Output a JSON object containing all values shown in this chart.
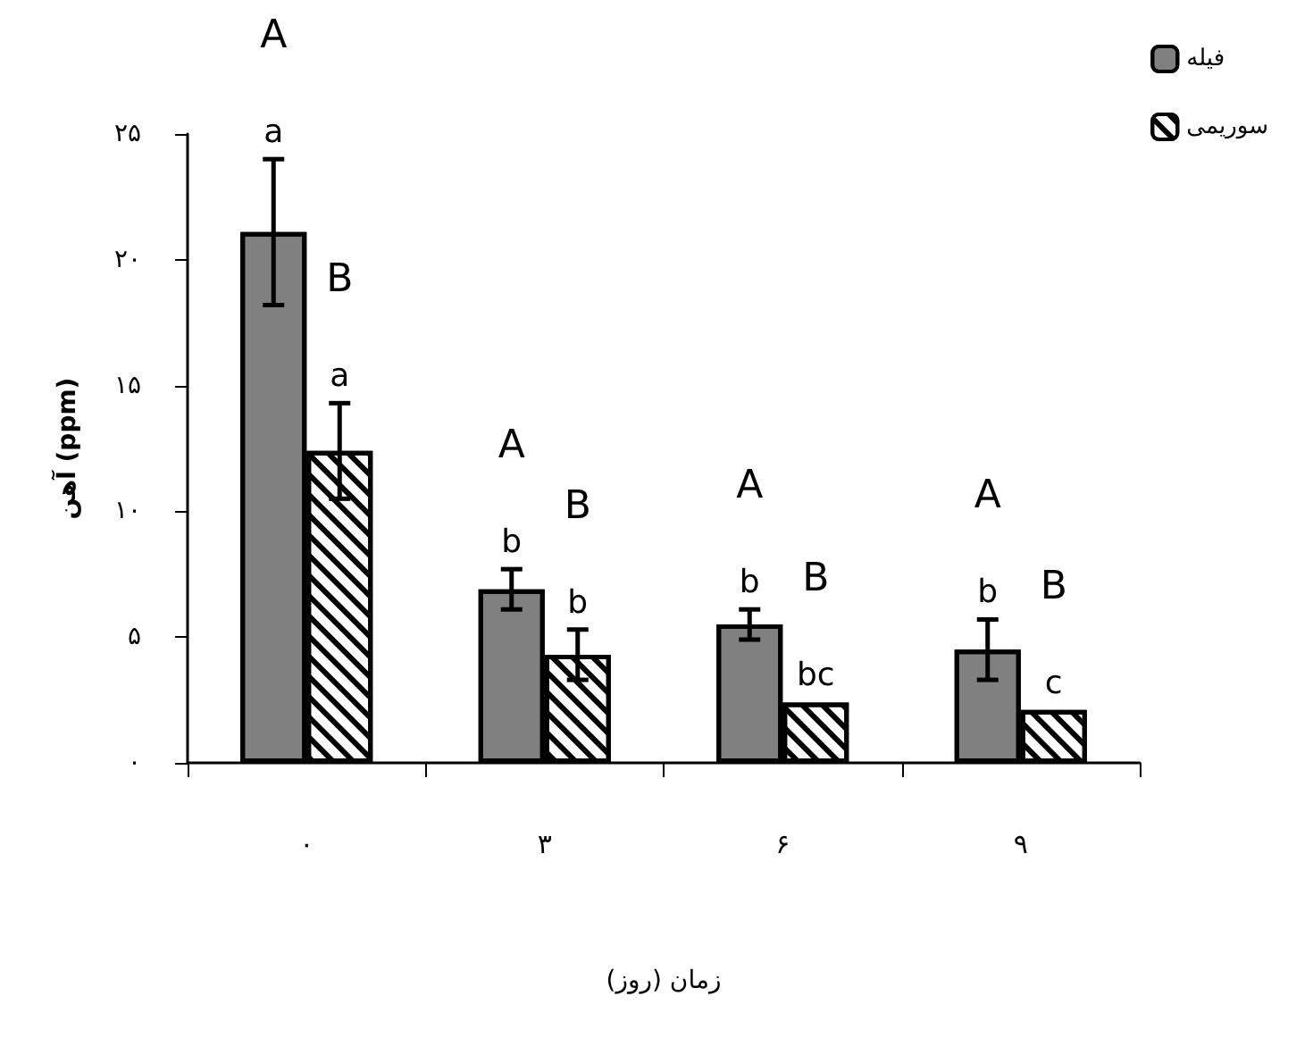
{
  "chart_data": {
    "type": "bar",
    "xlabel": "زمان (روز)",
    "ylabel": "آهن (ppm)",
    "categories": [
      "۰",
      "۳",
      "۶",
      "۹"
    ],
    "series": [
      {
        "name": "فیله",
        "color": "#808080",
        "values": [
          21.1,
          6.9,
          5.5,
          4.5
        ],
        "errors": [
          2.9,
          0.8,
          0.6,
          1.2
        ],
        "value_labels": [
          "a",
          "b",
          "b",
          "b"
        ]
      },
      {
        "name": "سوریمی",
        "color": "#ffffff",
        "values": [
          12.4,
          4.3,
          2.4,
          2.1
        ],
        "errors": [
          1.9,
          1.0,
          null,
          null
        ],
        "value_labels": [
          "a",
          "b",
          "bc",
          "c"
        ]
      }
    ],
    "annotations": [
      "A",
      "B",
      "A",
      "B",
      "A",
      "B",
      "A",
      "B"
    ],
    "ylim": [
      0,
      25
    ],
    "yticks": [
      {
        "value": 0,
        "label": "۰"
      },
      {
        "value": 5,
        "label": "۵"
      },
      {
        "value": 10,
        "label": "۱۰"
      },
      {
        "value": 15,
        "label": "۱۵"
      },
      {
        "value": 20,
        "label": "۲۰"
      },
      {
        "value": 25,
        "label": "۲۵"
      }
    ],
    "grid": false,
    "legend": "top right"
  }
}
